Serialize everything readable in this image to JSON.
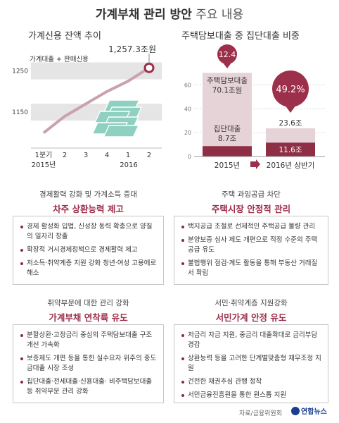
{
  "page": {
    "title_bold": "가계부채 관리 방안",
    "title_rest": "주요 내용",
    "source": "자료/금융위원회",
    "logo": "연합뉴스"
  },
  "colors": {
    "accent": "#9c2f4a",
    "bar_light": "#e6d3d8",
    "bar_dark": "#8f2f46",
    "band": "#e5e5e5",
    "line": "#c9a2ad"
  },
  "chart_data": [
    {
      "type": "line",
      "title": "가계신용 잔액 추이",
      "legend": "가계대출 + 판매신용",
      "x": [
        "1분기",
        "2",
        "3",
        "4",
        "1",
        "2"
      ],
      "year_labels": [
        "2015년",
        "2016"
      ],
      "series": [
        {
          "values": [
            1100,
            1140,
            1170,
            1200,
            1225,
            1257.3
          ]
        }
      ],
      "yticks": [
        1150,
        1250
      ],
      "ylim": [
        1070,
        1285
      ],
      "annotation": "1,257.3조원"
    },
    {
      "type": "bar",
      "title": "주택담보대출 중 집단대출 비중",
      "categories": [
        "2015년",
        "2016년 상반기"
      ],
      "yticks": [
        0,
        20,
        40,
        60
      ],
      "ylim": [
        0,
        75
      ],
      "totals": [
        70.1,
        23.6
      ],
      "group": [
        8.7,
        11.6
      ],
      "percent": [
        12.4,
        49.2
      ],
      "labels": {
        "total_2015_name": "주택담보대출",
        "total_2015": "70.1조원",
        "group_2015_name": "집단대출",
        "group_2015": "8.7조",
        "total_2016": "23.6조",
        "group_2016": "11.6조",
        "pct_2015": "12.4",
        "pct_2016": "49.2%"
      }
    }
  ],
  "panels": [
    {
      "sub": "경제활력 강화 및 가계소득 증대",
      "head": "차주 상환능력 제고",
      "items": [
        "경제 활성화 입법, 신성장 동력 확충으로 양질의 일자리 창출",
        "확장적 거시경제정책으로 경제활력 제고",
        "저소득·취약계층 지원 강화 청년·여성 고용에로 해소"
      ]
    },
    {
      "sub": "주택 과잉공급 차단",
      "head": "주택시장 안정적 관리",
      "items": [
        "택지공급 조절로 선제적인 주택공급 물량 관리",
        "분양보증 심사 제도 개편으로 적정 수준의 주택공급 유도",
        "불법행위 점검·계도 활동을 통해 부동산 거래질서 확립"
      ]
    },
    {
      "sub": "취약부문에 대한 관리 강화",
      "head": "가계부채 연착륙 유도",
      "items": [
        "분할상환·고정금리 중심의 주택담보대출 구조개선 가속화",
        "보증제도 개편 등을 통한 실수요자 위주의 중도금대출 시장 조성",
        "집단대출·전세대출·신용대출· 비주택담보대출 등 취약부문 관리 강화"
      ]
    },
    {
      "sub": "서민·취약계층 지원강화",
      "head": "서민가계 안정 유도",
      "items": [
        "저금리 자금 지원, 중금리 대출확대로 금리부담 경감",
        "상환능력 등을 고려한 단계별맞춤형 채무조정 지원",
        "건전한 채권추심 관행 정착",
        "서민금융진흥원을 통한 원스톱 지원"
      ]
    }
  ]
}
